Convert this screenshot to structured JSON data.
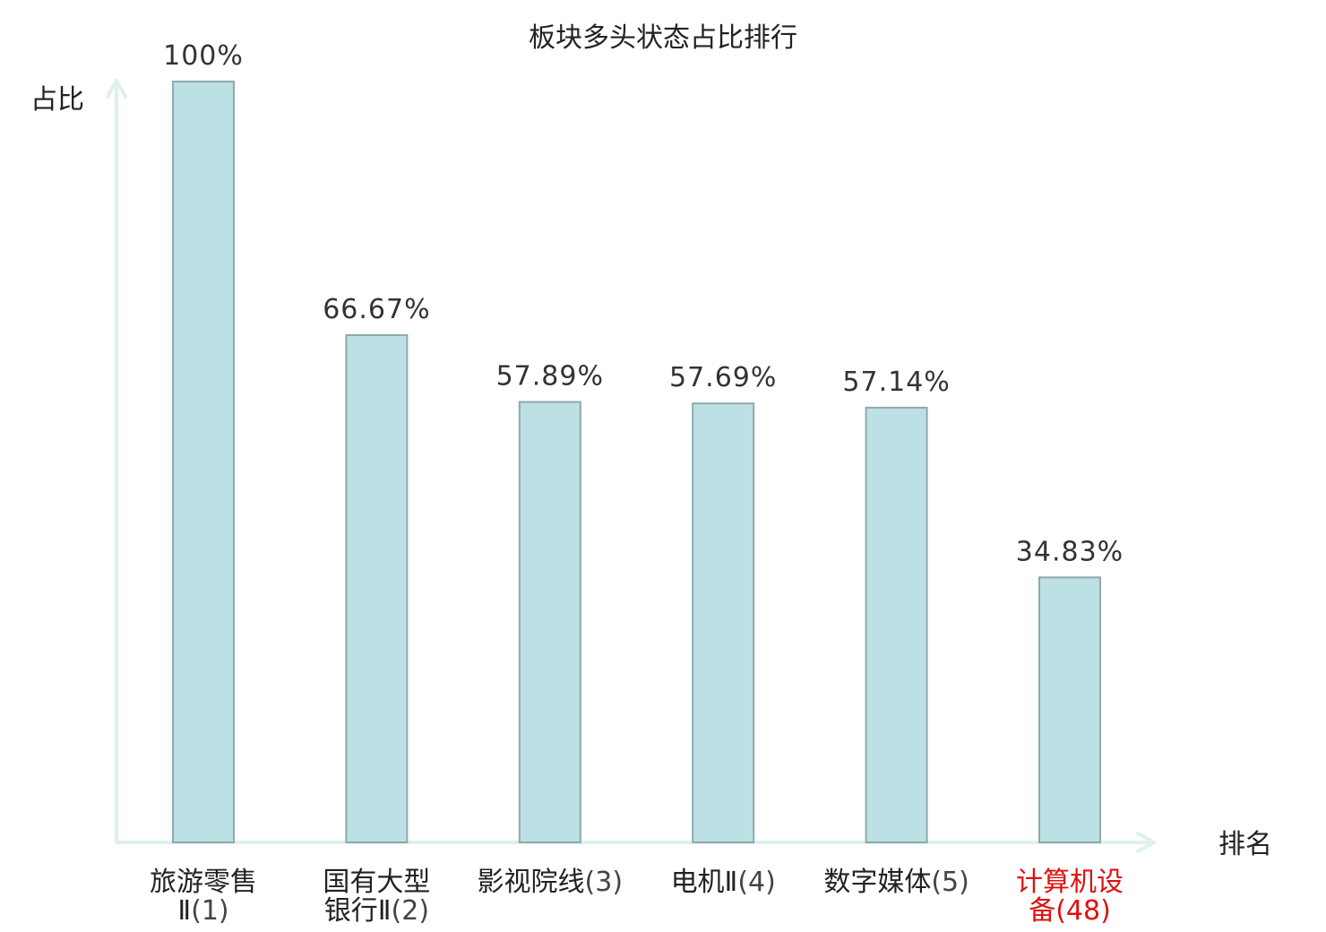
{
  "chart_data": {
    "type": "bar",
    "title": "板块多头状态占比排行",
    "ylabel": "占比",
    "xlabel": "排名",
    "ylim": [
      0,
      100
    ],
    "value_format": "percent",
    "value_labels": [
      "100%",
      "66.67%",
      "57.89%",
      "57.69%",
      "57.14%",
      "34.83%"
    ],
    "values": [
      100,
      66.67,
      57.89,
      57.69,
      57.14,
      34.83
    ],
    "categories": [
      {
        "name_lines": [
          "旅游零售",
          "Ⅱ"
        ],
        "rank": "(1)",
        "highlight": false
      },
      {
        "name_lines": [
          "国有大型",
          "银行Ⅱ"
        ],
        "rank": "(2)",
        "highlight": false
      },
      {
        "name_lines": [
          "影视院线"
        ],
        "rank": "(3)",
        "highlight": false
      },
      {
        "name_lines": [
          "电机Ⅱ"
        ],
        "rank": "(4)",
        "highlight": false
      },
      {
        "name_lines": [
          "数字媒体"
        ],
        "rank": "(5)",
        "highlight": false
      },
      {
        "name_lines": [
          "计算机设",
          "备"
        ],
        "rank": "(48)",
        "highlight": true
      }
    ],
    "grid": false,
    "colors": {
      "bar_fill": "#bce0e3",
      "bar_stroke": "#8fa9ad",
      "axis": "#ddf1ee",
      "text": "#222222",
      "value_text": "#333333",
      "rank_text": "#444444",
      "highlight": "#e01010"
    }
  }
}
